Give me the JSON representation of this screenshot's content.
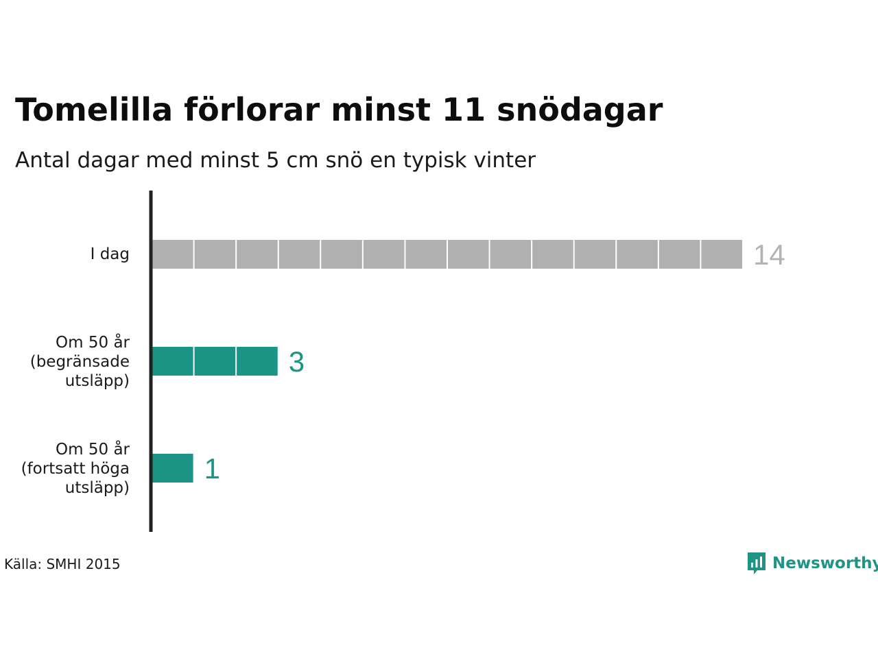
{
  "chart_data": {
    "type": "bar",
    "orientation": "horizontal",
    "title": "Tomelilla förlorar minst 11 snödagar",
    "subtitle": "Antal dagar med minst 5 cm snö en typisk vinter",
    "categories": [
      "I dag",
      "Om 50 år\n(begränsade\nutsläpp)",
      "Om 50 år\n(fortsatt höga\nutsläpp)"
    ],
    "values": [
      14,
      3,
      1
    ],
    "value_labels": [
      "14",
      "3",
      "1"
    ],
    "colors": [
      "#b0b0b0",
      "#1a9484",
      "#1a9484"
    ],
    "xlim": [
      0,
      14
    ],
    "unit_segments": true,
    "grid": false,
    "legend": "none"
  },
  "source": "Källa: SMHI 2015",
  "logo": {
    "text": "Newsworthy",
    "icon": "newsworthy-chart-icon",
    "color": "#1d9484"
  },
  "colors": {
    "gray": "#b0b0b0",
    "teal": "#1a9484",
    "label_gray": "#b3b3b3",
    "axis": "#222222"
  }
}
